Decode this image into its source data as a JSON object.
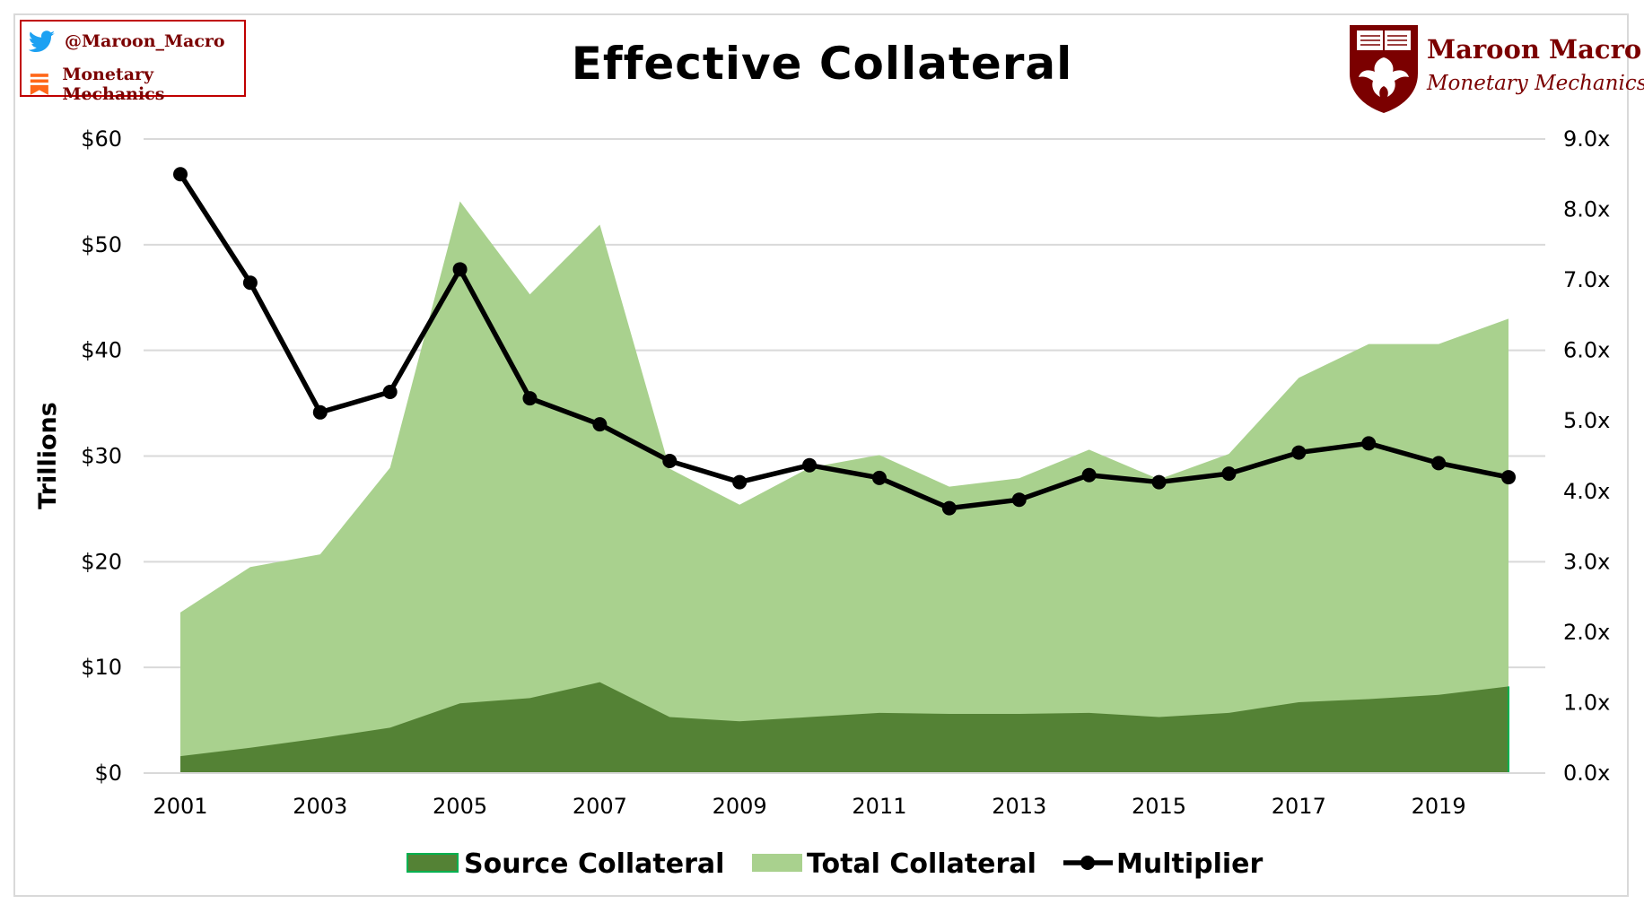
{
  "social": {
    "handle": "@Maroon_Macro",
    "newsletter": "Monetary Mechanics",
    "twitter_icon": "twitter-bird-icon",
    "substack_icon": "substack-icon"
  },
  "brand": {
    "name": "Maroon Macro",
    "subtitle": "Monetary Mechanics",
    "logo_icon": "phoenix-shield-icon"
  },
  "colors": {
    "maroon": "#7b0000",
    "source_fill": "#548235",
    "source_edge": "#00b050",
    "total_fill": "#a9d18e",
    "multiplier": "#000000",
    "grid": "#d9d9d9"
  },
  "chart_data": {
    "type": "area",
    "title": "Effective Collateral",
    "ylabel": "Trillions",
    "x": [
      2001,
      2002,
      2003,
      2004,
      2005,
      2006,
      2007,
      2008,
      2009,
      2010,
      2011,
      2012,
      2013,
      2014,
      2015,
      2016,
      2017,
      2018,
      2019,
      2020
    ],
    "x_ticks": [
      "2001",
      "2003",
      "2005",
      "2007",
      "2009",
      "2011",
      "2013",
      "2015",
      "2017",
      "2019"
    ],
    "ylim": [
      0,
      60
    ],
    "y_ticks": [
      "$0",
      "$10",
      "$20",
      "$30",
      "$40",
      "$50",
      "$60"
    ],
    "y2lim": [
      0,
      9
    ],
    "y2_ticks": [
      "0.0x",
      "1.0x",
      "2.0x",
      "3.0x",
      "4.0x",
      "5.0x",
      "6.0x",
      "7.0x",
      "8.0x",
      "9.0x"
    ],
    "grid": true,
    "legend_position": "bottom",
    "series": [
      {
        "name": "Source Collateral",
        "type": "area",
        "axis": "left",
        "values": [
          1.6,
          2.4,
          3.3,
          4.3,
          6.6,
          7.1,
          8.6,
          5.3,
          4.9,
          5.3,
          5.7,
          5.6,
          5.6,
          5.7,
          5.3,
          5.7,
          6.7,
          7.0,
          7.4,
          8.2
        ]
      },
      {
        "name": "Total Collateral",
        "type": "area",
        "axis": "left",
        "values": [
          15.2,
          19.5,
          20.7,
          28.9,
          54.1,
          45.3,
          51.9,
          28.8,
          25.4,
          28.9,
          30.1,
          27.1,
          27.9,
          30.6,
          27.8,
          30.2,
          37.4,
          40.6,
          40.6,
          43.0
        ]
      },
      {
        "name": "Multiplier",
        "type": "line",
        "axis": "right",
        "values": [
          8.5,
          6.96,
          5.12,
          5.41,
          7.15,
          5.32,
          4.95,
          4.43,
          4.13,
          4.37,
          4.19,
          3.76,
          3.88,
          4.23,
          4.13,
          4.25,
          4.55,
          4.68,
          4.4,
          4.2
        ]
      }
    ]
  }
}
